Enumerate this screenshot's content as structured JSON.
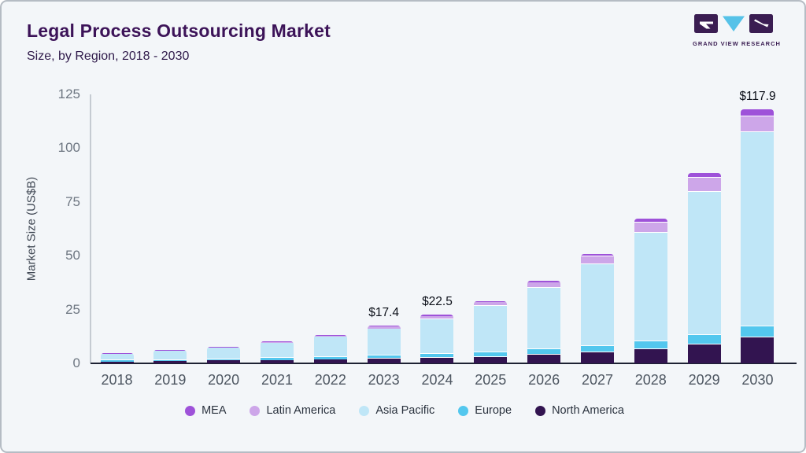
{
  "header": {
    "title": "Legal Process Outsourcing Market",
    "subtitle": "Size, by Region, 2018 - 2030",
    "logo_text": "GRAND VIEW RESEARCH"
  },
  "chart_data": {
    "type": "bar",
    "stacked": true,
    "title": "Legal Process Outsourcing Market Size, by Region, 2018 - 2030",
    "xlabel": "",
    "ylabel": "Market Size (US$B)",
    "ylim": [
      0,
      125
    ],
    "yticks": [
      "0",
      "25",
      "50",
      "75",
      "100",
      "125"
    ],
    "grid": false,
    "legend_position": "bottom",
    "categories": [
      "2018",
      "2019",
      "2020",
      "2021",
      "2022",
      "2023",
      "2024",
      "2025",
      "2026",
      "2027",
      "2028",
      "2029",
      "2030"
    ],
    "series": [
      {
        "name": "North America",
        "color": "#321450",
        "values": [
          0.9,
          1.1,
          1.3,
          1.6,
          1.9,
          2.3,
          2.6,
          3.1,
          4.0,
          5.2,
          6.6,
          8.6,
          12.0
        ]
      },
      {
        "name": "Europe",
        "color": "#53c7ee",
        "values": [
          0.4,
          0.5,
          0.6,
          0.8,
          1.0,
          1.3,
          1.7,
          2.0,
          2.4,
          3.0,
          3.8,
          4.4,
          5.1
        ]
      },
      {
        "name": "Asia Pacific",
        "color": "#bfe6f7",
        "values": [
          3.2,
          4.3,
          5.5,
          7.2,
          9.6,
          12.6,
          16.3,
          21.5,
          28.6,
          38.0,
          50.3,
          66.8,
          90.4
        ]
      },
      {
        "name": "Latin America",
        "color": "#cda6e9",
        "values": [
          0.2,
          0.3,
          0.3,
          0.5,
          0.6,
          0.9,
          1.5,
          1.8,
          2.5,
          3.5,
          4.9,
          6.6,
          7.3
        ]
      },
      {
        "name": "MEA",
        "color": "#9e52d9",
        "values": [
          0.1,
          0.1,
          0.1,
          0.2,
          0.2,
          0.3,
          0.4,
          0.6,
          0.8,
          1.2,
          1.7,
          2.2,
          3.1
        ]
      }
    ],
    "annotations": [
      {
        "category": "2023",
        "label": "$17.4"
      },
      {
        "category": "2024",
        "label": "$22.5"
      },
      {
        "category": "2030",
        "label": "$117.9"
      }
    ]
  },
  "colors": {
    "background": "#f3f6f9",
    "frame_border": "#b5bcc4",
    "title": "#3c1358",
    "axis_line": "#1d2233",
    "logo_dark": "#3a1d52",
    "logo_accent": "#56c2e8"
  }
}
